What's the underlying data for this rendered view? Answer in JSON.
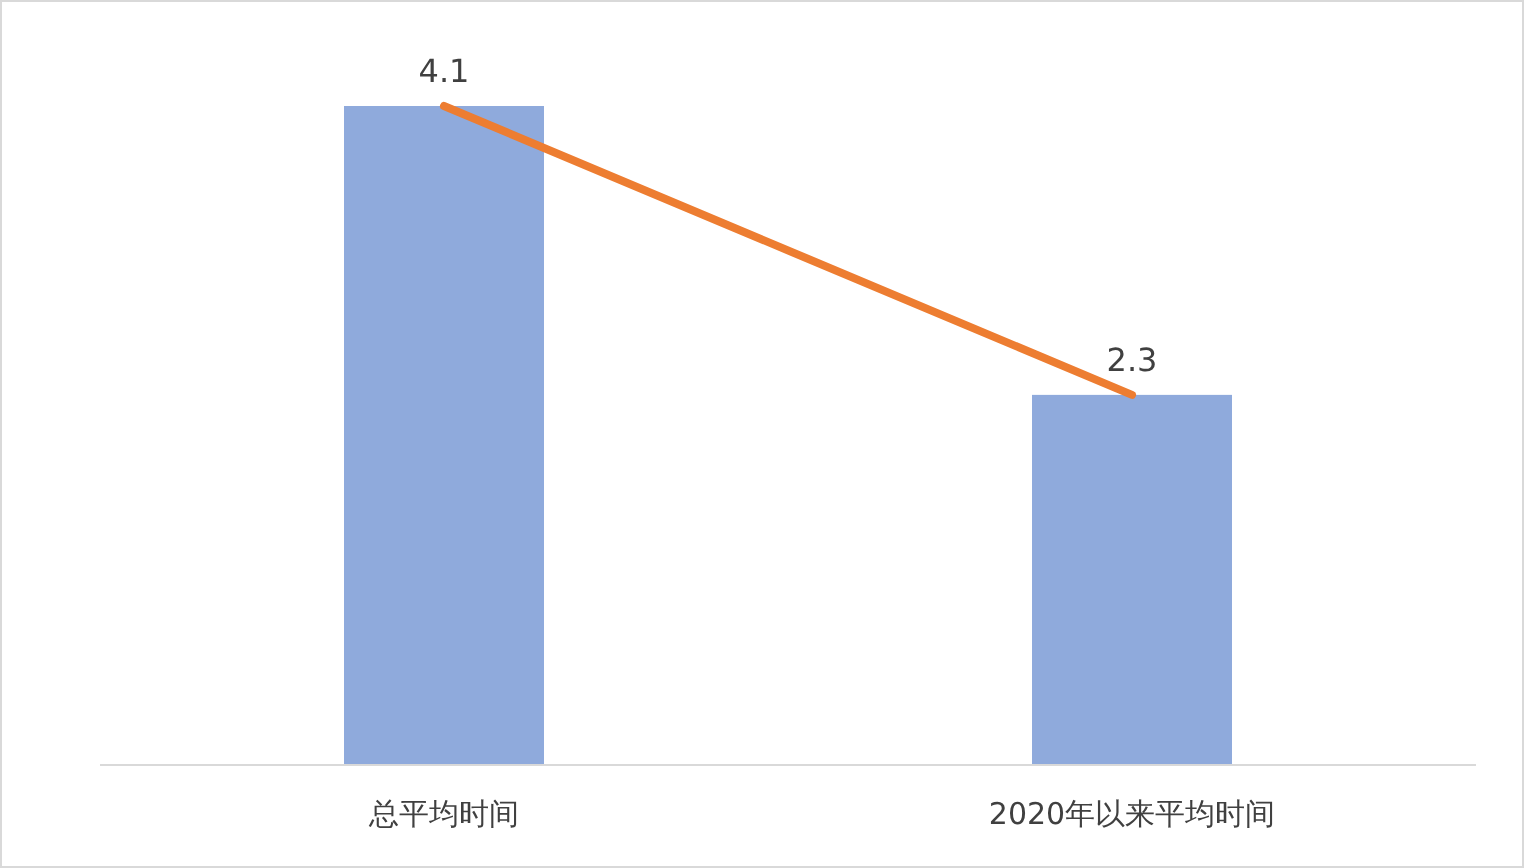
{
  "chart_data": {
    "type": "bar",
    "categories": [
      "总平均时间",
      "2020年以来平均时间"
    ],
    "series": [
      {
        "color": "#8faadc",
        "values": [
          4.1,
          2.3
        ],
        "value_labels": [
          "4.1",
          "2.3"
        ]
      },
      {
        "type": "line",
        "color": "#ed7d31",
        "values": [
          4.1,
          2.3
        ]
      }
    ]
  }
}
